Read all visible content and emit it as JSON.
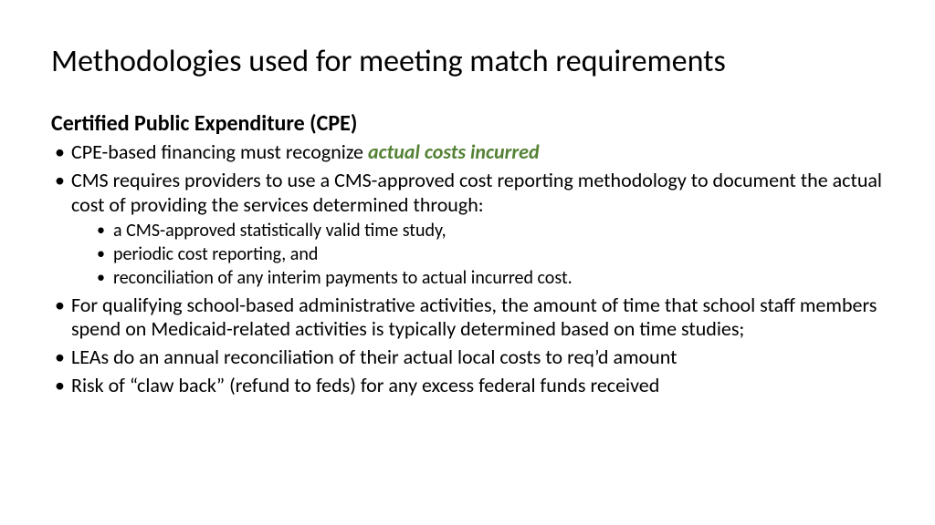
{
  "slide": {
    "title": "Methodologies used for meeting match requirements",
    "subtitle": "Certified Public Expenditure (CPE)",
    "bullets": [
      {
        "pre": "CPE-based financing must recognize ",
        "em": "actual costs incurred",
        "post": ""
      },
      {
        "text": "CMS requires providers to use a CMS-approved cost reporting methodology to document the actual cost of providing the services determined through:"
      },
      {
        "sub": [
          "a CMS-approved statistically valid time study,",
          "periodic cost reporting, and",
          "reconciliation of any interim payments to actual incurred cost."
        ]
      },
      {
        "text": "For qualifying school-based administrative activities, the amount of time that school staff members spend on Medicaid-related activities is typically determined based on time studies;"
      },
      {
        "text": "LEAs do an annual reconciliation of their actual local costs to req’d amount"
      },
      {
        "text": "Risk of “claw back” (refund to feds) for any excess federal funds received"
      }
    ]
  },
  "style": {
    "background_color": "#ffffff",
    "text_color": "#000000",
    "accent_color": "#548235",
    "title_fontsize_pt": 28,
    "subtitle_fontsize_pt": 18,
    "body_fontsize_pt": 17,
    "sub_fontsize_pt": 15,
    "font_family": "Calibri"
  }
}
